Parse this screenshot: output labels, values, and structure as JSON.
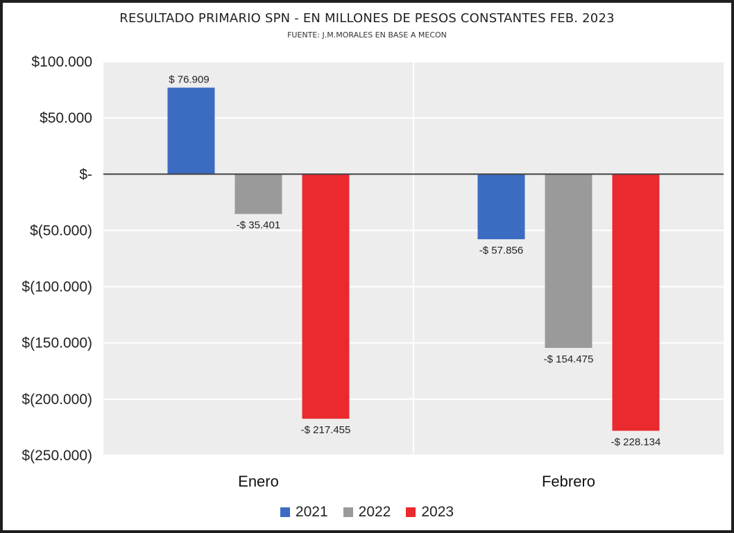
{
  "chart_data": {
    "type": "bar",
    "title": "RESULTADO PRIMARIO SPN - EN MILLONES DE PESOS CONSTANTES FEB. 2023",
    "subtitle": "FUENTE: J.M.MORALES EN BASE A MECON",
    "categories": [
      "Enero",
      "Febrero"
    ],
    "series": [
      {
        "name": "2021",
        "color": "#3b6cc2",
        "values": [
          76909,
          -57856
        ],
        "labels": [
          "$ 76.909",
          "-$ 57.856"
        ]
      },
      {
        "name": "2022",
        "color": "#9a9a9a",
        "values": [
          -35401,
          -154475
        ],
        "labels": [
          "-$ 35.401",
          "-$ 154.475"
        ]
      },
      {
        "name": "2023",
        "color": "#ea2a2e",
        "values": [
          -217455,
          -228134
        ],
        "labels": [
          "-$ 217.455",
          "-$ 228.134"
        ]
      }
    ],
    "yticks": [
      100000,
      50000,
      0,
      -50000,
      -100000,
      -150000,
      -200000,
      -250000
    ],
    "ytick_labels": [
      "$100.000",
      "$50.000",
      "$-",
      "$(50.000)",
      "$(100.000)",
      "$(150.000)",
      "$(200.000)",
      "$(250.000)"
    ],
    "ylim": [
      -250000,
      100000
    ],
    "grid": true,
    "legend_position": "bottom"
  }
}
